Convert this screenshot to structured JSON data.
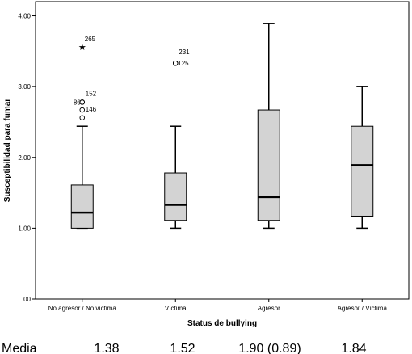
{
  "chart_data": {
    "type": "boxplot",
    "xlabel": "Status de bullying",
    "ylabel": "Susceptibilidad para fumar",
    "ylim": [
      0,
      4.2
    ],
    "yticks": [
      0,
      1,
      2,
      3,
      4
    ],
    "ytick_labels": [
      ".00",
      "1.00",
      "2.00",
      "3.00",
      "4.00"
    ],
    "grid": false,
    "box_color": "#d3d3d3",
    "categories": [
      "No agresor / No víctima",
      "Víctima",
      "Agresor",
      "Agresor / Víctima"
    ],
    "boxes": [
      {
        "category": "No agresor / No víctima",
        "whisker_low": 1.0,
        "q1": 1.0,
        "median": 1.22,
        "q3": 1.61,
        "whisker_high": 2.44
      },
      {
        "category": "Víctima",
        "whisker_low": 1.0,
        "q1": 1.11,
        "median": 1.33,
        "q3": 1.78,
        "whisker_high": 2.44
      },
      {
        "category": "Agresor",
        "whisker_low": 1.0,
        "q1": 1.11,
        "median": 1.44,
        "q3": 2.67,
        "whisker_high": 3.89
      },
      {
        "category": "Agresor / Víctima",
        "whisker_low": 1.0,
        "q1": 1.17,
        "median": 1.89,
        "q3": 2.44,
        "whisker_high": 3.0
      }
    ],
    "outliers": [
      {
        "category_index": 0,
        "value": 3.56,
        "marker": "star",
        "label": "265"
      },
      {
        "category_index": 0,
        "value": 2.78,
        "marker": "circle",
        "label": "152"
      },
      {
        "category_index": 0,
        "value": 2.78,
        "marker": "circle",
        "label": "86"
      },
      {
        "category_index": 0,
        "value": 2.67,
        "marker": "circle",
        "label": "146"
      },
      {
        "category_index": 0,
        "value": 2.56,
        "marker": "circle",
        "label": ""
      },
      {
        "category_index": 1,
        "value": 3.33,
        "marker": "circle",
        "label": "231"
      },
      {
        "category_index": 1,
        "value": 3.33,
        "marker": "circle",
        "label": "125"
      }
    ]
  },
  "footer": {
    "label": "Media",
    "values": [
      "1.38",
      "1.52",
      "1.90 (0.89)",
      "1.84"
    ]
  }
}
